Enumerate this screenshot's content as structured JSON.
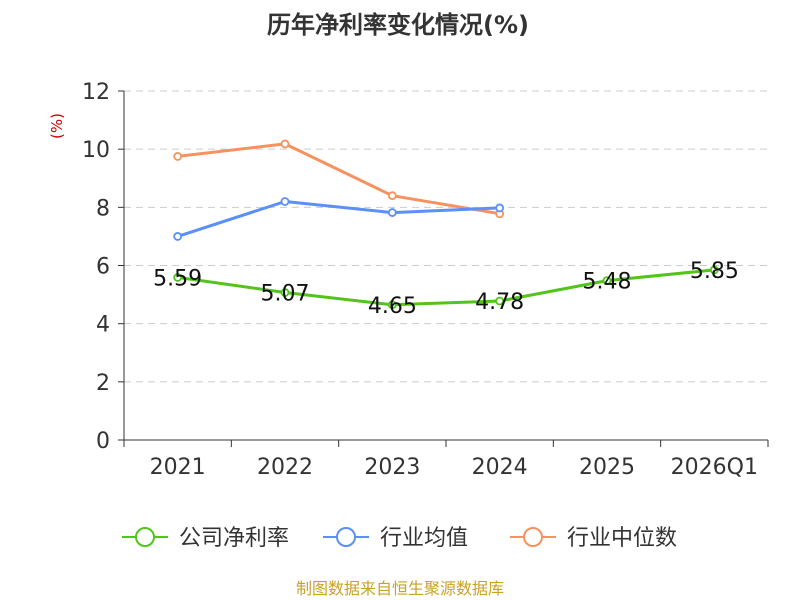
{
  "chart_data": {
    "type": "line",
    "title": "历年净利率变化情况(%)",
    "ylabel": "(%)",
    "xlabel": "",
    "categories": [
      "2021",
      "2022",
      "2023",
      "2024",
      "2025",
      "2026Q1"
    ],
    "ylim": [
      0,
      12
    ],
    "yticks": [
      0,
      2,
      4,
      6,
      8,
      10,
      12
    ],
    "grid": true,
    "legend_position": "bottom",
    "series": [
      {
        "name": "公司净利率",
        "color": "#52c41a",
        "values": [
          5.59,
          5.07,
          4.65,
          4.78,
          5.48,
          5.85
        ],
        "labels": [
          "5.59",
          "5.07",
          "4.65",
          "4.78",
          "5.48",
          "5.85"
        ]
      },
      {
        "name": "行业均值",
        "color": "#5b8ff9",
        "values": [
          7.0,
          8.2,
          7.82,
          7.98,
          null,
          null
        ],
        "labels": []
      },
      {
        "name": "行业中位数",
        "color": "#f6925f",
        "values": [
          9.75,
          10.18,
          8.4,
          7.78,
          null,
          null
        ],
        "labels": []
      }
    ]
  },
  "footer": {
    "source": "制图数据来自恒生聚源数据库"
  }
}
